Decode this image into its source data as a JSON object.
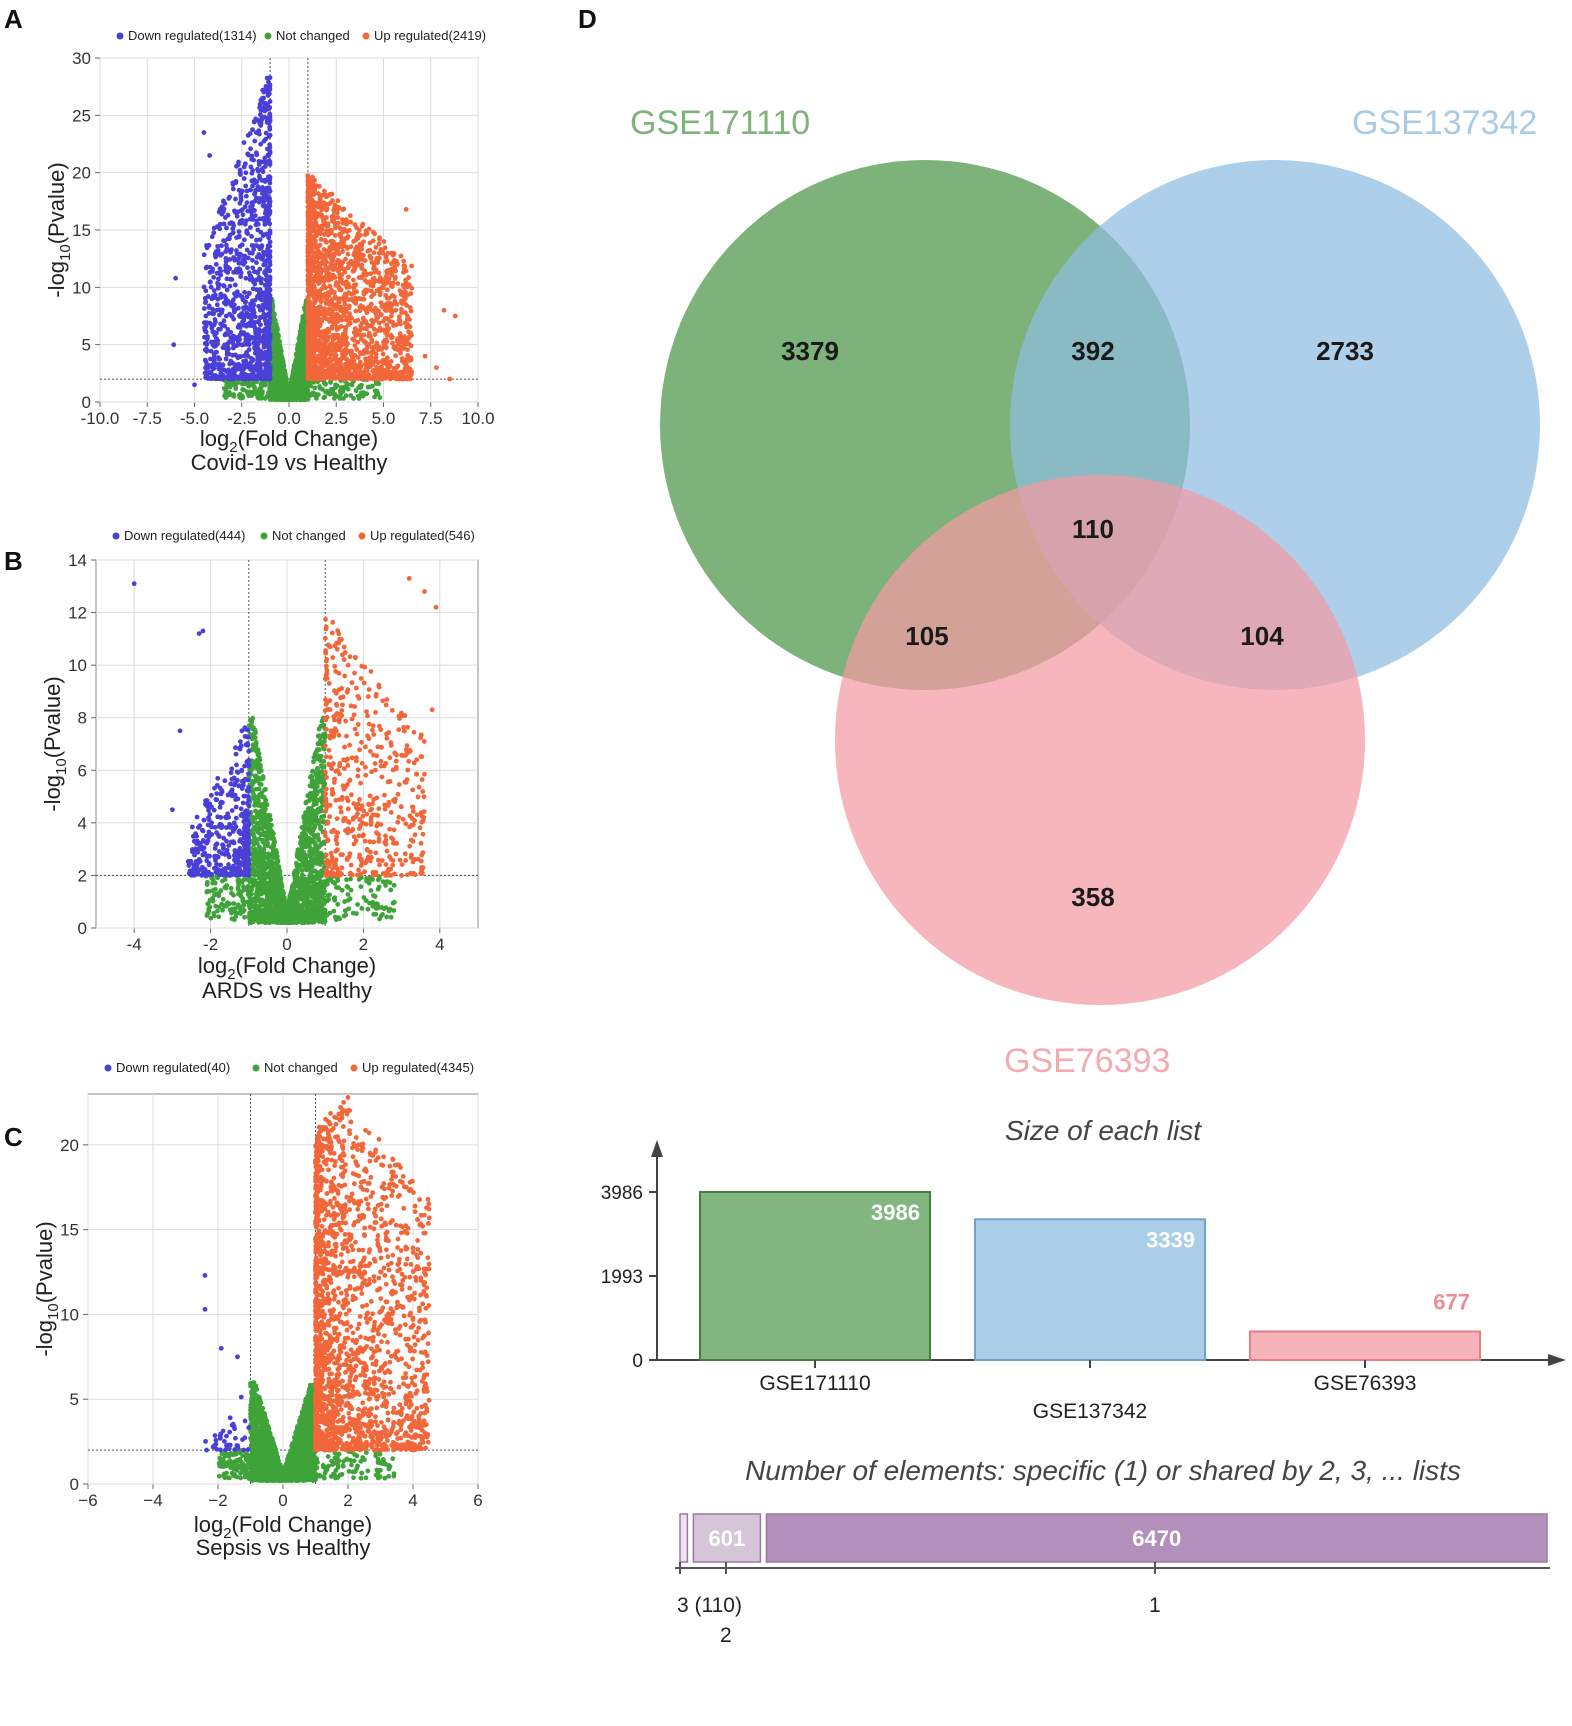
{
  "panels": {
    "A": "A",
    "B": "B",
    "C": "C",
    "D": "D"
  },
  "colors": {
    "down": "#4a3fd6",
    "notchanged": "#3fa33a",
    "up": "#f2673a",
    "venn1": "#5a9c56",
    "venn2": "#8fbde0",
    "venn3": "#f49aa3",
    "count": "#b390bb",
    "count_light": "#d6c4d9"
  },
  "chart_data": [
    {
      "type": "scatter",
      "panel": "A",
      "legend": [
        {
          "name": "Down regulated(1314)",
          "color": "#4a3fd6"
        },
        {
          "name": "Not changed",
          "color": "#3fa33a"
        },
        {
          "name": "Up regulated(2419)",
          "color": "#f2673a"
        }
      ],
      "xlabel_main": "log",
      "xlabel_sub": "2",
      "xlabel_rest": "(Fold Change)",
      "ylabel_main": "-log",
      "ylabel_sub": "10",
      "ylabel_rest": "(Pvalue)",
      "caption": "Covid-19 vs Healthy",
      "xlim": [
        -10,
        10
      ],
      "ylim": [
        0,
        30
      ],
      "xticks": [
        -10,
        -7.5,
        -5,
        -2.5,
        0,
        2.5,
        5,
        7.5,
        10
      ],
      "xtick_labels": [
        "-10.0",
        "-7.5",
        "-5.0",
        "-2.5",
        "0.0",
        "2.5",
        "5.0",
        "7.5",
        "10.0"
      ],
      "yticks": [
        0,
        5,
        10,
        15,
        20,
        25,
        30
      ],
      "ytick_labels": [
        "0",
        "5",
        "10",
        "15",
        "20",
        "25",
        "30"
      ],
      "fc_threshold": 1,
      "p_threshold": 2,
      "down_range": [
        -4.5,
        -1
      ],
      "up_range": [
        1,
        6.5
      ],
      "down_ymax": 29,
      "up_ymax": 20,
      "nc_ymax": 9,
      "outliers_down": [
        [
          -6,
          10.8
        ],
        [
          -6.1,
          5
        ],
        [
          -4.5,
          23.5
        ],
        [
          -4.2,
          21.5
        ],
        [
          -5,
          1.5
        ]
      ],
      "outliers_up": [
        [
          8.2,
          8
        ],
        [
          8.8,
          7.5
        ],
        [
          7.2,
          4
        ],
        [
          7.8,
          3
        ],
        [
          8.5,
          2
        ],
        [
          6.2,
          16.8
        ]
      ]
    },
    {
      "type": "scatter",
      "panel": "B",
      "legend": [
        {
          "name": "Down regulated(444)",
          "color": "#4a3fd6"
        },
        {
          "name": "Not changed",
          "color": "#3fa33a"
        },
        {
          "name": "Up regulated(546)",
          "color": "#f2673a"
        }
      ],
      "xlabel_main": "log",
      "xlabel_sub": "2",
      "xlabel_rest": "(Fold Change)",
      "ylabel_main": "-log",
      "ylabel_sub": "10",
      "ylabel_rest": "(Pvalue)",
      "caption": "ARDS vs Healthy",
      "xlim": [
        -5,
        5
      ],
      "ylim": [
        0,
        14
      ],
      "xticks": [
        -4,
        -2,
        0,
        2,
        4
      ],
      "xtick_labels": [
        "-4",
        "-2",
        "0",
        "2",
        "4"
      ],
      "yticks": [
        0,
        2,
        4,
        6,
        8,
        10,
        12,
        14
      ],
      "ytick_labels": [
        "0",
        "2",
        "4",
        "6",
        "8",
        "10",
        "12",
        "14"
      ],
      "fc_threshold": 1,
      "p_threshold": 2,
      "down_range": [
        -2.6,
        -1
      ],
      "up_range": [
        1,
        3.6
      ],
      "down_ymax": 8,
      "up_ymax": 12,
      "nc_ymax": 8,
      "outliers_down": [
        [
          -4,
          13.1
        ],
        [
          -2.3,
          11.2
        ],
        [
          -2.2,
          11.3
        ],
        [
          -2.8,
          7.5
        ],
        [
          -3,
          4.5
        ]
      ],
      "outliers_up": [
        [
          3.2,
          13.3
        ],
        [
          3.9,
          12.2
        ],
        [
          3.6,
          12.8
        ],
        [
          3.8,
          8.3
        ],
        [
          3.3,
          3.3
        ]
      ]
    },
    {
      "type": "scatter",
      "panel": "C",
      "legend": [
        {
          "name": "Down regulated(40)",
          "color": "#4a3fd6"
        },
        {
          "name": "Not changed",
          "color": "#3fa33a"
        },
        {
          "name": "Up regulated(4345)",
          "color": "#f2673a"
        }
      ],
      "xlabel_main": "log",
      "xlabel_sub": "2",
      "xlabel_rest": "(Fold Change)",
      "ylabel_main": "-log",
      "ylabel_sub": "10",
      "ylabel_rest": "(Pvalue)",
      "caption": "Sepsis vs Healthy",
      "xlim": [
        -6,
        6
      ],
      "ylim": [
        0,
        23
      ],
      "xticks": [
        -6,
        -4,
        -2,
        0,
        2,
        4,
        6
      ],
      "xtick_labels": [
        "−6",
        "−4",
        "−2",
        "0",
        "2",
        "4",
        "6"
      ],
      "yticks": [
        0,
        5,
        10,
        15,
        20
      ],
      "ytick_labels": [
        "0",
        "5",
        "10",
        "15",
        "20"
      ],
      "fc_threshold": 1,
      "p_threshold": 2,
      "down_range": [
        -2.4,
        -1
      ],
      "up_range": [
        1,
        4.5
      ],
      "down_ymax": 6,
      "up_ymax": 22.8,
      "nc_ymax": 6,
      "outliers_down": [
        [
          -2.4,
          12.3
        ],
        [
          -2.4,
          10.3
        ],
        [
          -1.9,
          8
        ],
        [
          -1.4,
          7.5
        ]
      ],
      "outliers_up": [
        [
          4.5,
          15.7
        ],
        [
          3.8,
          17.5
        ],
        [
          4.1,
          12
        ],
        [
          4,
          9.7
        ],
        [
          2,
          22.8
        ]
      ]
    },
    {
      "type": "venn",
      "panel": "D",
      "sets": [
        {
          "name": "GSE171110",
          "color": "#5a9c56",
          "label_color": "#7fb37a"
        },
        {
          "name": "GSE137342",
          "color": "#8fbde0",
          "label_color": "#a9cbe6"
        },
        {
          "name": "GSE76393",
          "color": "#f49aa3",
          "label_color": "#f5aab1"
        }
      ],
      "regions": {
        "only_1": "3379",
        "only_2": "2733",
        "only_3": "358",
        "1_2": "392",
        "1_3": "105",
        "2_3": "104",
        "1_2_3": "110"
      }
    },
    {
      "type": "bar",
      "panel": "D",
      "title": "Size of each list",
      "categories": [
        "GSE171110",
        "GSE137342",
        "GSE76393"
      ],
      "values": [
        3986,
        3339,
        677
      ],
      "value_labels": [
        "3986",
        "3339",
        "677"
      ],
      "yticks": [
        0,
        1993,
        3986
      ],
      "ytick_labels": [
        "0",
        "1993",
        "3986"
      ],
      "ylim": [
        0,
        3986
      ]
    },
    {
      "type": "bar",
      "panel": "D",
      "orientation": "horizontal-stacked",
      "title": "Number of elements: specific (1) or shared by 2, 3, ... lists",
      "segments": [
        {
          "shared_by": 3,
          "value": 110,
          "label": ""
        },
        {
          "shared_by": 2,
          "value": 601,
          "label": "601"
        },
        {
          "shared_by": 1,
          "value": 6470,
          "label": "6470"
        }
      ],
      "axis_labels": {
        "three": "3 (110)",
        "two": "2",
        "one": "1"
      }
    }
  ]
}
